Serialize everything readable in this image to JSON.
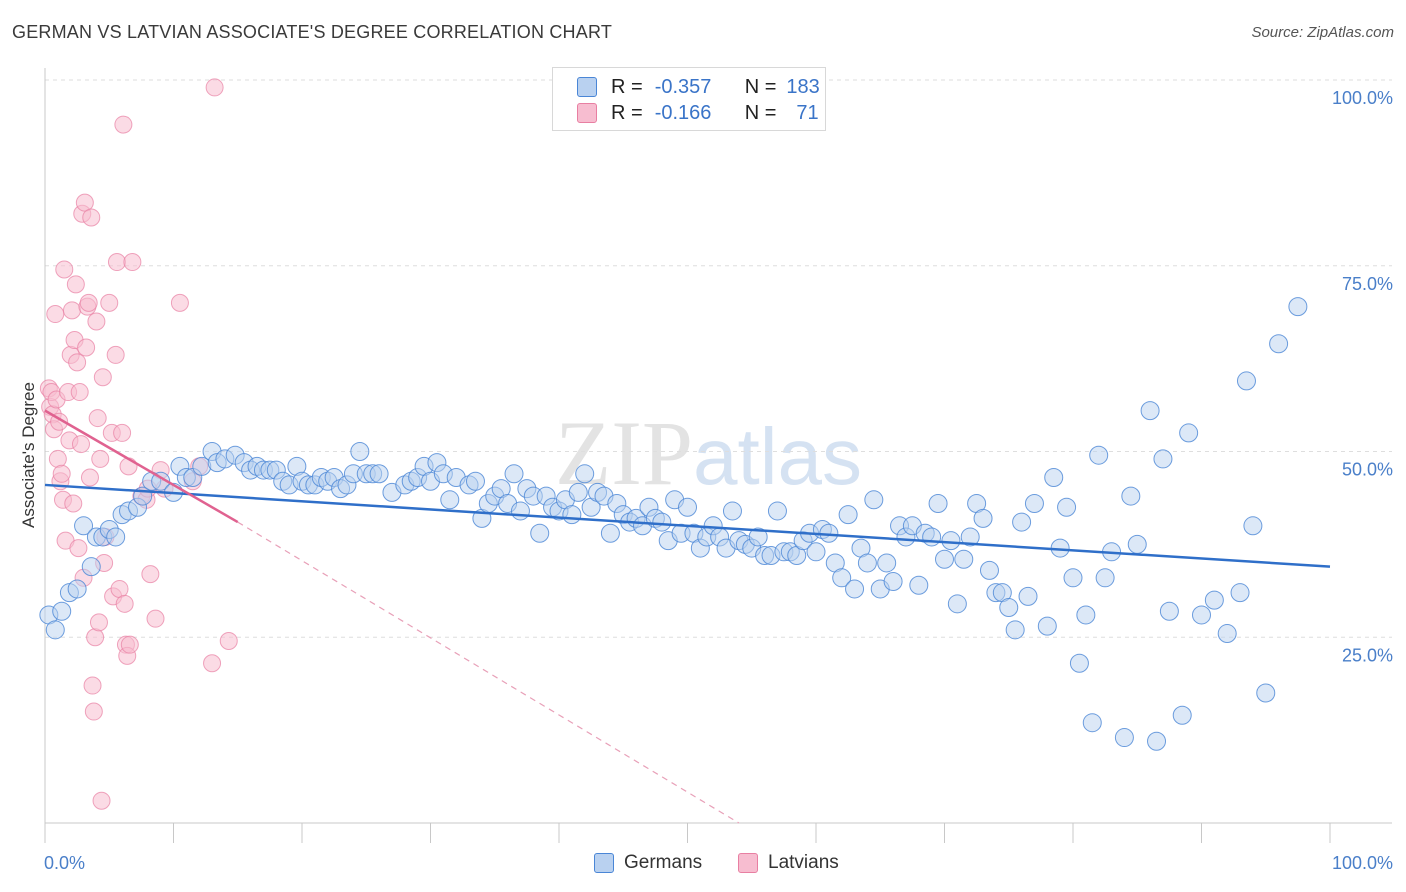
{
  "title": "GERMAN VS LATVIAN ASSOCIATE'S DEGREE CORRELATION CHART",
  "source": "Source: ZipAtlas.com",
  "watermark": {
    "zip": "ZIP",
    "atlas": "atlas"
  },
  "legend": {
    "rows": [
      {
        "r_label": "R =",
        "r_value": "-0.357",
        "n_label": "N =",
        "n_value": "183"
      },
      {
        "r_label": "R =",
        "r_value": "-0.166",
        "n_label": "N =",
        "n_value": "71"
      }
    ]
  },
  "colors": {
    "germans": "#4a86d6",
    "latvians": "#e87fa2",
    "germans_fill": "#b9d1f0",
    "latvians_fill": "#f7bdd0",
    "axis_text": "#4a7fc9"
  },
  "chart_data": {
    "type": "scatter",
    "title": "GERMAN VS LATVIAN ASSOCIATE'S DEGREE CORRELATION CHART",
    "xlabel": "",
    "ylabel": "Associate's Degree",
    "xlim": [
      0,
      100
    ],
    "ylim": [
      0,
      100
    ],
    "x_tick_labels": [
      "0.0%",
      "100.0%"
    ],
    "y_tick_labels": [
      "25.0%",
      "50.0%",
      "75.0%",
      "100.0%"
    ],
    "y_ticks": [
      25,
      50,
      75,
      100
    ],
    "grid": true,
    "legend_position": "top-center",
    "series": [
      {
        "name": "Germans",
        "color": "#4a86d6",
        "trend": {
          "x": [
            0,
            100
          ],
          "y": [
            45.5,
            34.5
          ]
        },
        "points": [
          [
            0.3,
            28
          ],
          [
            0.8,
            26
          ],
          [
            1.3,
            28.5
          ],
          [
            1.9,
            31
          ],
          [
            2.5,
            31.5
          ],
          [
            3,
            40
          ],
          [
            3.6,
            34.5
          ],
          [
            4,
            38.5
          ],
          [
            4.5,
            38.5
          ],
          [
            5,
            39.5
          ],
          [
            5.5,
            38.5
          ],
          [
            6,
            41.5
          ],
          [
            6.5,
            42
          ],
          [
            7.2,
            42.5
          ],
          [
            7.6,
            44
          ],
          [
            8.3,
            46
          ],
          [
            9,
            46
          ],
          [
            10,
            44.5
          ],
          [
            10.5,
            48
          ],
          [
            11,
            46.5
          ],
          [
            11.5,
            46.5
          ],
          [
            12.2,
            48
          ],
          [
            13,
            50
          ],
          [
            13.4,
            48.5
          ],
          [
            14,
            49
          ],
          [
            14.8,
            49.5
          ],
          [
            15.5,
            48.5
          ],
          [
            16,
            47.5
          ],
          [
            16.5,
            48
          ],
          [
            17,
            47.5
          ],
          [
            17.5,
            47.5
          ],
          [
            18,
            47.5
          ],
          [
            18.5,
            46
          ],
          [
            19,
            45.5
          ],
          [
            19.6,
            48
          ],
          [
            20,
            46
          ],
          [
            20.5,
            45.5
          ],
          [
            21,
            45.5
          ],
          [
            21.5,
            46.5
          ],
          [
            22,
            46
          ],
          [
            22.5,
            46.5
          ],
          [
            23,
            45
          ],
          [
            23.5,
            45.5
          ],
          [
            24,
            47
          ],
          [
            24.5,
            50
          ],
          [
            25,
            47
          ],
          [
            25.5,
            47
          ],
          [
            26,
            47
          ],
          [
            27,
            44.5
          ],
          [
            28,
            45.5
          ],
          [
            28.5,
            46
          ],
          [
            29,
            46.5
          ],
          [
            29.5,
            48
          ],
          [
            30,
            46
          ],
          [
            30.5,
            48.5
          ],
          [
            31,
            47
          ],
          [
            31.5,
            43.5
          ],
          [
            32,
            46.5
          ],
          [
            33,
            45.5
          ],
          [
            33.5,
            46
          ],
          [
            34,
            41
          ],
          [
            34.5,
            43
          ],
          [
            35,
            44
          ],
          [
            35.5,
            45
          ],
          [
            36,
            43
          ],
          [
            36.5,
            47
          ],
          [
            37,
            42
          ],
          [
            37.5,
            45
          ],
          [
            38,
            44
          ],
          [
            38.5,
            39
          ],
          [
            39,
            44
          ],
          [
            39.5,
            42.5
          ],
          [
            40,
            42
          ],
          [
            40.5,
            43.5
          ],
          [
            41,
            41.5
          ],
          [
            41.5,
            44.5
          ],
          [
            42,
            47
          ],
          [
            42.5,
            42.5
          ],
          [
            43,
            44.5
          ],
          [
            43.5,
            44
          ],
          [
            44,
            39
          ],
          [
            44.5,
            43
          ],
          [
            45,
            41.5
          ],
          [
            45.5,
            40.5
          ],
          [
            46,
            41
          ],
          [
            46.5,
            40
          ],
          [
            47,
            42.5
          ],
          [
            47.5,
            41
          ],
          [
            48,
            40.5
          ],
          [
            48.5,
            38
          ],
          [
            49,
            43.5
          ],
          [
            49.5,
            39
          ],
          [
            50,
            42.5
          ],
          [
            50.5,
            39
          ],
          [
            51,
            37
          ],
          [
            51.5,
            38.5
          ],
          [
            52,
            40
          ],
          [
            52.5,
            38.5
          ],
          [
            53,
            37
          ],
          [
            53.5,
            42
          ],
          [
            54,
            38
          ],
          [
            54.5,
            37.5
          ],
          [
            55,
            37
          ],
          [
            55.5,
            38.5
          ],
          [
            56,
            36
          ],
          [
            56.5,
            36
          ],
          [
            57,
            42
          ],
          [
            57.5,
            36.5
          ],
          [
            58,
            36.5
          ],
          [
            58.5,
            36
          ],
          [
            59,
            38
          ],
          [
            59.5,
            39
          ],
          [
            60,
            36.5
          ],
          [
            60.5,
            39.5
          ],
          [
            61,
            39
          ],
          [
            61.5,
            35
          ],
          [
            62,
            33
          ],
          [
            62.5,
            41.5
          ],
          [
            63,
            31.5
          ],
          [
            63.5,
            37
          ],
          [
            64,
            35
          ],
          [
            64.5,
            43.5
          ],
          [
            65,
            31.5
          ],
          [
            65.5,
            35
          ],
          [
            66,
            32.5
          ],
          [
            66.5,
            40
          ],
          [
            67,
            38.5
          ],
          [
            67.5,
            40
          ],
          [
            68,
            32
          ],
          [
            68.5,
            39
          ],
          [
            69,
            38.5
          ],
          [
            69.5,
            43
          ],
          [
            70,
            35.5
          ],
          [
            70.5,
            38
          ],
          [
            71,
            29.5
          ],
          [
            71.5,
            35.5
          ],
          [
            72,
            38.5
          ],
          [
            72.5,
            43
          ],
          [
            73,
            41
          ],
          [
            73.5,
            34
          ],
          [
            74,
            31
          ],
          [
            74.5,
            31
          ],
          [
            75,
            29
          ],
          [
            75.5,
            26
          ],
          [
            76,
            40.5
          ],
          [
            76.5,
            30.5
          ],
          [
            77,
            43
          ],
          [
            78,
            26.5
          ],
          [
            78.5,
            46.5
          ],
          [
            79,
            37
          ],
          [
            79.5,
            42.5
          ],
          [
            80,
            33
          ],
          [
            80.5,
            21.5
          ],
          [
            81,
            28
          ],
          [
            81.5,
            13.5
          ],
          [
            82,
            49.5
          ],
          [
            82.5,
            33
          ],
          [
            83,
            36.5
          ],
          [
            84,
            11.5
          ],
          [
            84.5,
            44
          ],
          [
            85,
            37.5
          ],
          [
            86,
            55.5
          ],
          [
            86.5,
            11
          ],
          [
            87,
            49
          ],
          [
            87.5,
            28.5
          ],
          [
            88.5,
            14.5
          ],
          [
            89,
            52.5
          ],
          [
            90,
            28
          ],
          [
            91,
            30
          ],
          [
            92,
            25.5
          ],
          [
            93,
            31
          ],
          [
            93.5,
            59.5
          ],
          [
            94,
            40
          ],
          [
            95,
            17.5
          ],
          [
            96,
            64.5
          ],
          [
            97.5,
            69.5
          ]
        ]
      },
      {
        "name": "Latvians",
        "color": "#e87fa2",
        "trend": {
          "x": [
            0,
            15
          ],
          "y": [
            55.5,
            40.5
          ],
          "x_dash": [
            15,
            54
          ],
          "y_dash": [
            40.5,
            0
          ]
        },
        "points": [
          [
            0.3,
            58.5
          ],
          [
            0.4,
            56
          ],
          [
            0.5,
            58
          ],
          [
            0.6,
            55
          ],
          [
            0.7,
            53
          ],
          [
            0.8,
            68.5
          ],
          [
            0.9,
            57
          ],
          [
            1,
            49
          ],
          [
            1.1,
            54
          ],
          [
            1.2,
            46
          ],
          [
            1.3,
            47
          ],
          [
            1.4,
            43.5
          ],
          [
            1.5,
            74.5
          ],
          [
            1.6,
            38
          ],
          [
            1.8,
            58
          ],
          [
            1.9,
            51.5
          ],
          [
            2,
            63
          ],
          [
            2.1,
            69
          ],
          [
            2.2,
            43
          ],
          [
            2.3,
            65
          ],
          [
            2.4,
            72.5
          ],
          [
            2.5,
            62
          ],
          [
            2.6,
            37
          ],
          [
            2.7,
            58
          ],
          [
            2.8,
            51
          ],
          [
            2.9,
            82
          ],
          [
            3,
            33
          ],
          [
            3.1,
            83.5
          ],
          [
            3.2,
            64
          ],
          [
            3.3,
            69.5
          ],
          [
            3.4,
            70
          ],
          [
            3.5,
            46.5
          ],
          [
            3.6,
            81.5
          ],
          [
            3.7,
            18.5
          ],
          [
            3.8,
            15
          ],
          [
            3.9,
            25
          ],
          [
            4,
            67.5
          ],
          [
            4.1,
            54.5
          ],
          [
            4.2,
            27
          ],
          [
            4.3,
            49
          ],
          [
            4.4,
            3
          ],
          [
            4.5,
            60
          ],
          [
            4.6,
            35
          ],
          [
            4.7,
            38.5
          ],
          [
            5,
            70
          ],
          [
            5.2,
            52.5
          ],
          [
            5.3,
            30.5
          ],
          [
            5.5,
            63
          ],
          [
            5.6,
            75.5
          ],
          [
            5.8,
            31.5
          ],
          [
            6,
            52.5
          ],
          [
            6.1,
            94
          ],
          [
            6.2,
            29.5
          ],
          [
            6.3,
            24
          ],
          [
            6.4,
            22.5
          ],
          [
            6.5,
            48
          ],
          [
            6.6,
            24
          ],
          [
            6.8,
            75.5
          ],
          [
            7.5,
            44
          ],
          [
            7.9,
            43.5
          ],
          [
            8,
            45
          ],
          [
            8.2,
            33.5
          ],
          [
            8.6,
            27.5
          ],
          [
            9,
            47.5
          ],
          [
            9.3,
            45
          ],
          [
            10.5,
            70
          ],
          [
            11.5,
            46
          ],
          [
            12,
            48
          ],
          [
            13,
            21.5
          ],
          [
            13.2,
            99
          ],
          [
            14.3,
            24.5
          ]
        ]
      }
    ]
  },
  "bottom_legend": [
    {
      "label": "Germans"
    },
    {
      "label": "Latvians"
    }
  ]
}
